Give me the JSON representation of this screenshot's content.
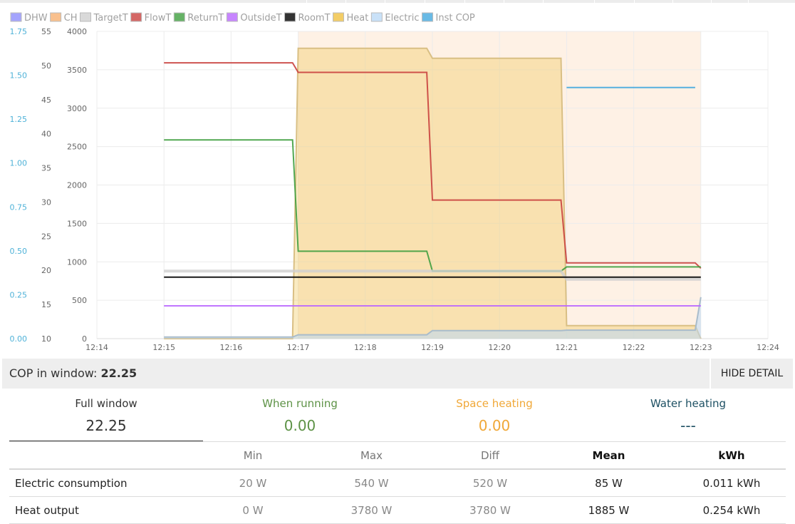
{
  "colors": {
    "dhw": "#8d8dfc",
    "ch": "#f8b070",
    "target": "#cfcfcf",
    "flow": "#c9413e",
    "return": "#3f9f3f",
    "outside": "#b967ff",
    "room": "#000000",
    "heat": "#f0c040",
    "electric": "#bcd9f6",
    "cop": "#44a9de",
    "cop_axis": "#4fb2d8",
    "grid": "#ececec",
    "running": "#5d9246",
    "space": "#f0a838",
    "water": "#1d5063"
  },
  "chart_data": {
    "type": "line",
    "legend": {
      "placement": "top-left",
      "items": [
        {
          "name": "DHW",
          "color": "#8d8dfc"
        },
        {
          "name": "CH",
          "color": "#f8b070"
        },
        {
          "name": "TargetT",
          "color": "#cfcfcf"
        },
        {
          "name": "FlowT",
          "color": "#c9413e"
        },
        {
          "name": "ReturnT",
          "color": "#3f9f3f"
        },
        {
          "name": "OutsideT",
          "color": "#b967ff"
        },
        {
          "name": "RoomT",
          "color": "#000000"
        },
        {
          "name": "Heat",
          "color": "#f0c040"
        },
        {
          "name": "Electric",
          "color": "#bcd9f6"
        },
        {
          "name": "Inst COP",
          "color": "#44a9de"
        }
      ]
    },
    "x_ticks": [
      "12:14",
      "12:15",
      "12:16",
      "12:17",
      "12:18",
      "12:19",
      "12:20",
      "12:21",
      "12:22",
      "12:23",
      "12:24"
    ],
    "xlim": [
      "12:14",
      "12:24"
    ],
    "axes": {
      "cop": {
        "range": [
          0,
          1.75
        ],
        "ticks": [
          "0.00",
          "0.25",
          "0.50",
          "0.75",
          "1.00",
          "1.25",
          "1.50",
          "1.75"
        ]
      },
      "temperature": {
        "range": [
          10,
          55
        ],
        "ticks": [
          "10",
          "15",
          "20",
          "25",
          "30",
          "35",
          "40",
          "45",
          "50",
          "55"
        ]
      },
      "power": {
        "range": [
          0,
          4000
        ],
        "ticks": [
          "0",
          "500",
          "1000",
          "1500",
          "2000",
          "2500",
          "3000",
          "3500",
          "4000"
        ]
      }
    },
    "grid": true,
    "ch_bands": [
      {
        "from": "12:17",
        "to": "12:23"
      }
    ],
    "series": [
      {
        "name": "Heat",
        "axis": "power",
        "style": "area",
        "color": "#f0c040",
        "points": [
          [
            "12:15",
            0
          ],
          [
            "12:16:55",
            0
          ],
          [
            "12:17",
            3780
          ],
          [
            "12:18:55",
            3780
          ],
          [
            "12:19",
            3650
          ],
          [
            "12:20:55",
            3650
          ],
          [
            "12:21",
            170
          ],
          [
            "12:22:55",
            170
          ],
          [
            "12:23",
            0
          ]
        ]
      },
      {
        "name": "Electric",
        "axis": "power",
        "style": "area",
        "color": "#bcd9f6",
        "points": [
          [
            "12:15",
            20
          ],
          [
            "12:16:55",
            20
          ],
          [
            "12:17",
            50
          ],
          [
            "12:18:55",
            50
          ],
          [
            "12:19",
            105
          ],
          [
            "12:20:55",
            105
          ],
          [
            "12:21",
            110
          ],
          [
            "12:22:55",
            110
          ],
          [
            "12:23",
            540
          ]
        ]
      },
      {
        "name": "FlowT",
        "axis": "temperature",
        "style": "line",
        "color": "#c9413e",
        "points": [
          [
            "12:15",
            50.4
          ],
          [
            "12:16:55",
            50.4
          ],
          [
            "12:17",
            49.0
          ],
          [
            "12:18:55",
            49.0
          ],
          [
            "12:19",
            30.3
          ],
          [
            "12:20:55",
            30.3
          ],
          [
            "12:21",
            21.1
          ],
          [
            "12:22:55",
            21.1
          ],
          [
            "12:23",
            20.3
          ]
        ]
      },
      {
        "name": "ReturnT",
        "axis": "temperature",
        "style": "line",
        "color": "#3f9f3f",
        "points": [
          [
            "12:15",
            39.1
          ],
          [
            "12:16:55",
            39.1
          ],
          [
            "12:17",
            22.8
          ],
          [
            "12:18:55",
            22.8
          ],
          [
            "12:19",
            19.9
          ],
          [
            "12:20:55",
            19.9
          ],
          [
            "12:21",
            20.5
          ],
          [
            "12:22:55",
            20.5
          ],
          [
            "12:23",
            20.5
          ]
        ]
      },
      {
        "name": "TargetT",
        "axis": "temperature",
        "style": "line",
        "color": "#cfcfcf",
        "points": [
          [
            "12:15",
            19.9
          ],
          [
            "12:20:55",
            19.9
          ],
          [
            "12:21",
            18.7
          ],
          [
            "12:23",
            18.7
          ]
        ]
      },
      {
        "name": "RoomT",
        "axis": "temperature",
        "style": "line",
        "color": "#000000",
        "points": [
          [
            "12:15",
            19.0
          ],
          [
            "12:23",
            19.0
          ]
        ]
      },
      {
        "name": "OutsideT",
        "axis": "temperature",
        "style": "line",
        "color": "#b967ff",
        "points": [
          [
            "12:15",
            14.8
          ],
          [
            "12:23",
            14.8
          ]
        ]
      },
      {
        "name": "Inst COP",
        "axis": "cop",
        "style": "line",
        "color": "#44a9de",
        "points": [
          [
            "12:21",
            1.43
          ],
          [
            "12:22:55",
            1.43
          ]
        ]
      }
    ]
  },
  "cop_bar": {
    "label": "COP in window:",
    "value": "22.25",
    "button": "HIDE DETAIL"
  },
  "summary": [
    {
      "label": "Full window",
      "value": "22.25"
    },
    {
      "label": "When running",
      "value": "0.00"
    },
    {
      "label": "Space heating",
      "value": "0.00"
    },
    {
      "label": "Water heating",
      "value": "---"
    }
  ],
  "stats": {
    "headers": [
      "",
      "Min",
      "Max",
      "Diff",
      "Mean",
      "kWh"
    ],
    "rows": [
      {
        "label": "Electric consumption",
        "min": "20 W",
        "max": "540 W",
        "diff": "520 W",
        "mean": "85 W",
        "kwh": "0.011 kWh"
      },
      {
        "label": "Heat output",
        "min": "0 W",
        "max": "3780 W",
        "diff": "3780 W",
        "mean": "1885 W",
        "kwh": "0.254 kWh"
      }
    ]
  }
}
